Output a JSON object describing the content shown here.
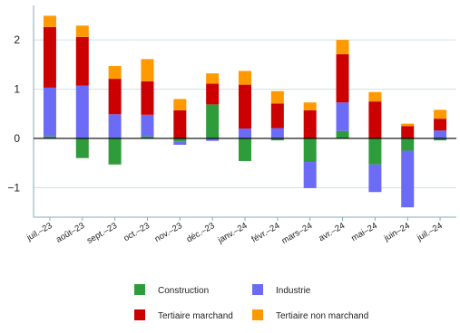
{
  "chart_data": {
    "type": "bar",
    "stacked": true,
    "title": "",
    "xlabel": "",
    "ylabel": "",
    "ylim": [
      -1.6,
      2.7
    ],
    "yticks": [
      -1,
      0,
      1,
      2
    ],
    "ytick_labels": [
      "−1",
      "0",
      "1",
      "2"
    ],
    "grid": true,
    "legend_position": "bottom",
    "categories": [
      "juil.–23",
      "août–23",
      "sept.–23",
      "oct.–23",
      "nov.–23",
      "déc.–23",
      "janv.–24",
      "févr.–24",
      "mars–24",
      "avr.–24",
      "mai–24",
      "juin–24",
      "juil.–24"
    ],
    "series": [
      {
        "name": "Construction",
        "color": "#2e9c3a",
        "values": [
          0.04,
          -0.4,
          -0.53,
          0.04,
          -0.06,
          0.69,
          -0.46,
          -0.04,
          -0.48,
          0.15,
          -0.53,
          -0.25,
          -0.04
        ]
      },
      {
        "name": "Industrie",
        "color": "#6b6bf5",
        "values": [
          0.99,
          1.07,
          0.49,
          0.44,
          -0.07,
          -0.05,
          0.2,
          0.21,
          -0.53,
          0.58,
          -0.56,
          -1.15,
          0.16
        ]
      },
      {
        "name": "Tertiaire marchand",
        "color": "#cc0000",
        "values": [
          1.23,
          0.99,
          0.72,
          0.68,
          0.57,
          0.42,
          0.89,
          0.5,
          0.57,
          0.98,
          0.75,
          0.25,
          0.24
        ]
      },
      {
        "name": "Tertiaire non marchand",
        "color": "#ff9900",
        "values": [
          0.23,
          0.23,
          0.26,
          0.45,
          0.23,
          0.21,
          0.28,
          0.25,
          0.16,
          0.29,
          0.19,
          0.05,
          0.18
        ]
      }
    ]
  }
}
